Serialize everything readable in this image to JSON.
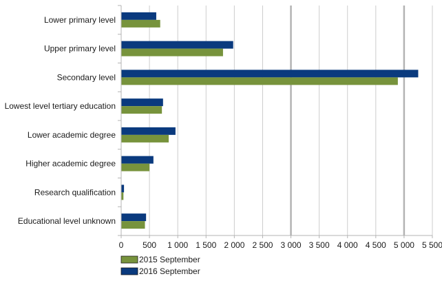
{
  "chart_data": {
    "type": "bar",
    "orientation": "horizontal",
    "categories": [
      "Lower primary level",
      "Upper primary level",
      "Secondary level",
      "Lowest level tertiary education",
      "Lower academic degree",
      "Higher academic degree",
      "Research qualification",
      "Educational level unknown"
    ],
    "series": [
      {
        "name": "2015 September",
        "color": "#77933c",
        "values": [
          690,
          1800,
          4890,
          720,
          840,
          500,
          40,
          420
        ]
      },
      {
        "name": "2016 September",
        "color": "#0a3a7e",
        "values": [
          620,
          1980,
          5250,
          740,
          960,
          570,
          50,
          440
        ]
      }
    ],
    "xlim": [
      0,
      5500
    ],
    "xticks": [
      0,
      500,
      1000,
      1500,
      2000,
      2500,
      3000,
      3500,
      4000,
      4500,
      5000,
      5500
    ],
    "xtick_labels": [
      "0",
      "500",
      "1 000",
      "1 500",
      "2 000",
      "2 500",
      "3 000",
      "3 500",
      "4 000",
      "4 500",
      "5 000",
      "5 500"
    ],
    "grid": "vertical",
    "legend_position": "bottom-left",
    "title": "",
    "xlabel": "",
    "ylabel": ""
  }
}
